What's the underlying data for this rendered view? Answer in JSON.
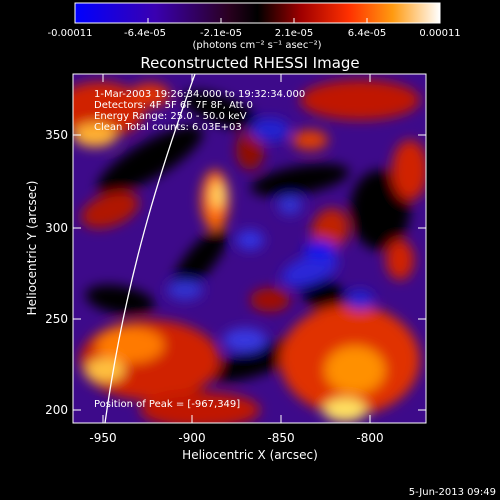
{
  "colorbar": {
    "tick_labels": [
      "-0.00011",
      "-6.4e-05",
      "-2.1e-05",
      "2.1e-05",
      "6.4e-05",
      "0.00011"
    ],
    "units_label": "(photons cm⁻² s⁻¹ asec⁻²)",
    "colors": [
      "#0000ff",
      "#3a00a0",
      "#3a0030",
      "#000000",
      "#8a0000",
      "#ff2a00",
      "#ff8a00",
      "#ffe060",
      "#ffffff"
    ]
  },
  "plot": {
    "title": "Reconstructed RHESSI Image",
    "info_lines": [
      "1-Mar-2003 19:26:34.000 to 19:32:34.000",
      "Detectors: 4F 5F 6F 7F 8F, Att 0",
      "Energy Range: 25.0 - 50.0 keV",
      "Clean     Total counts: 6.03E+03"
    ],
    "peak_label": "Position of Peak = [-967,349]",
    "xlabel": "Heliocentric X (arcsec)",
    "ylabel": "Heliocentric Y (arcsec)",
    "x_ticks": [
      "-950",
      "-900",
      "-850",
      "-800"
    ],
    "y_ticks": [
      "200",
      "250",
      "300",
      "350"
    ]
  },
  "timestamp": "5-Jun-2013 09:49"
}
